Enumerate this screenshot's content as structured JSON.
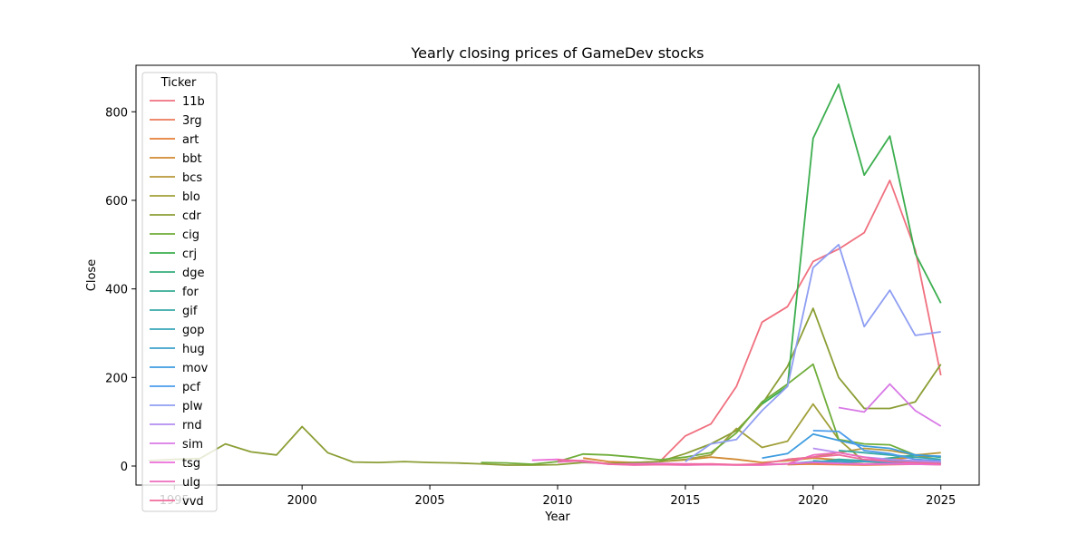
{
  "chart_data": {
    "type": "line",
    "title": "Yearly closing prices of GameDev stocks",
    "xlabel": "Year",
    "ylabel": "Close",
    "xlim": [
      1993.5,
      2026.5
    ],
    "ylim": [
      -43,
      905
    ],
    "x_ticks": [
      1995,
      2000,
      2005,
      2010,
      2015,
      2020,
      2025
    ],
    "x_tick_labels": [
      "1995",
      "2000",
      "2005",
      "2010",
      "2015",
      "2020",
      "2025"
    ],
    "y_ticks": [
      0,
      200,
      400,
      600,
      800
    ],
    "y_tick_labels": [
      "0",
      "200",
      "400",
      "600",
      "800"
    ],
    "grid": false,
    "legend": {
      "title": "Ticker",
      "location": "top-left"
    },
    "series": [
      {
        "name": "11b",
        "color": "#f0707f",
        "x": [
          2014,
          2015,
          2016,
          2017,
          2018,
          2019,
          2020,
          2021,
          2022,
          2023,
          2024,
          2025
        ],
        "values": [
          10,
          68,
          95,
          180,
          325,
          360,
          462,
          490,
          527,
          645,
          488,
          205
        ]
      },
      {
        "name": "3rg",
        "color": "#ec7a58",
        "x": [
          2018,
          2019,
          2020,
          2021,
          2022,
          2023,
          2024,
          2025
        ],
        "values": [
          3,
          5,
          4,
          3,
          2,
          3,
          4,
          5
        ]
      },
      {
        "name": "art",
        "color": "#e57e35",
        "x": [
          2019,
          2020,
          2021,
          2022,
          2023,
          2024,
          2025
        ],
        "values": [
          3,
          5,
          8,
          5,
          6,
          4,
          3
        ]
      },
      {
        "name": "bbt",
        "color": "#d28a32",
        "x": [
          2011,
          2012,
          2013,
          2014,
          2015,
          2016,
          2017,
          2018,
          2019,
          2020,
          2021,
          2022,
          2023,
          2024,
          2025
        ],
        "values": [
          18,
          10,
          8,
          10,
          14,
          20,
          15,
          8,
          12,
          18,
          14,
          10,
          15,
          20,
          22
        ]
      },
      {
        "name": "bcs",
        "color": "#b8983a",
        "x": [
          2019,
          2020,
          2021,
          2022,
          2023,
          2024,
          2025
        ],
        "values": [
          15,
          20,
          30,
          40,
          35,
          25,
          30
        ]
      },
      {
        "name": "blo",
        "color": "#a1a03a",
        "x": [
          2014,
          2015,
          2016,
          2017,
          2018,
          2019,
          2020,
          2021,
          2022,
          2023,
          2024,
          2025
        ],
        "values": [
          10,
          15,
          25,
          85,
          42,
          56,
          140,
          60,
          10,
          15,
          8,
          10
        ]
      },
      {
        "name": "cdr",
        "color": "#8b9e35",
        "x": [
          1994,
          1995,
          1996,
          1997,
          1998,
          1999,
          2000,
          2001,
          2002,
          2003,
          2004,
          2005,
          2006,
          2007,
          2008,
          2009,
          2010,
          2011,
          2012,
          2013,
          2014,
          2015,
          2016,
          2017,
          2018,
          2019,
          2020,
          2021,
          2022,
          2023,
          2024,
          2025
        ],
        "values": [
          12,
          15,
          17,
          50,
          32,
          25,
          89,
          30,
          9,
          8,
          10,
          8,
          7,
          5,
          2,
          2,
          3,
          8,
          6,
          8,
          10,
          28,
          50,
          80,
          140,
          225,
          356,
          200,
          130,
          130,
          145,
          230
        ]
      },
      {
        "name": "cig",
        "color": "#6fad3a",
        "x": [
          2007,
          2008,
          2009,
          2010,
          2011,
          2012,
          2013,
          2014,
          2015,
          2016,
          2017,
          2018,
          2019,
          2020,
          2021,
          2022,
          2023,
          2024,
          2025
        ],
        "values": [
          8,
          7,
          4,
          10,
          27,
          25,
          20,
          14,
          20,
          30,
          75,
          145,
          185,
          230,
          60,
          50,
          48,
          25,
          20
        ]
      },
      {
        "name": "crj",
        "color": "#3cae4f",
        "x": [
          2018,
          2019,
          2020,
          2021,
          2022,
          2023,
          2024,
          2025
        ],
        "values": [
          140,
          180,
          740,
          862,
          657,
          745,
          480,
          368
        ]
      },
      {
        "name": "dge",
        "color": "#37ad7b",
        "x": [
          2019,
          2020,
          2021,
          2022,
          2023,
          2024,
          2025
        ],
        "values": [
          5,
          8,
          12,
          10,
          12,
          10,
          8
        ]
      },
      {
        "name": "for",
        "color": "#36ab95",
        "x": [
          2018,
          2019,
          2020,
          2021,
          2022,
          2023,
          2024,
          2025
        ],
        "values": [
          3,
          5,
          8,
          15,
          12,
          18,
          25,
          20
        ]
      },
      {
        "name": "gif",
        "color": "#38a9a8",
        "x": [
          2021,
          2022,
          2023,
          2024,
          2025
        ],
        "values": [
          35,
          30,
          25,
          20,
          15
        ]
      },
      {
        "name": "gop",
        "color": "#3aa7ba",
        "x": [
          2020,
          2021,
          2022,
          2023,
          2024,
          2025
        ],
        "values": [
          12,
          8,
          10,
          12,
          10,
          8
        ]
      },
      {
        "name": "hug",
        "color": "#3da2cc",
        "x": [
          2019,
          2020,
          2021,
          2022,
          2023,
          2024,
          2025
        ],
        "values": [
          5,
          10,
          12,
          10,
          8,
          6,
          5
        ]
      },
      {
        "name": "mov",
        "color": "#3e9ce0",
        "x": [
          2018,
          2019,
          2020,
          2021,
          2022,
          2023,
          2024,
          2025
        ],
        "values": [
          18,
          28,
          72,
          58,
          45,
          40,
          25,
          22
        ]
      },
      {
        "name": "pcf",
        "color": "#4c9cec",
        "x": [
          2020,
          2021,
          2022,
          2023,
          2024,
          2025
        ],
        "values": [
          80,
          78,
          35,
          28,
          15,
          12
        ]
      },
      {
        "name": "plw",
        "color": "#8f9ef2",
        "x": [
          2015,
          2016,
          2017,
          2018,
          2019,
          2020,
          2021,
          2022,
          2023,
          2024,
          2025
        ],
        "values": [
          10,
          50,
          60,
          125,
          180,
          448,
          500,
          315,
          397,
          295,
          303
        ]
      },
      {
        "name": "rnd",
        "color": "#b58df0",
        "x": [
          2020,
          2021,
          2022,
          2023,
          2024,
          2025
        ],
        "values": [
          40,
          30,
          20,
          15,
          12,
          10
        ]
      },
      {
        "name": "sim",
        "color": "#d87ae6",
        "x": [
          2021,
          2022,
          2023,
          2024,
          2025
        ],
        "values": [
          132,
          122,
          185,
          125,
          90
        ]
      },
      {
        "name": "tsg",
        "color": "#ec6dd9",
        "x": [
          2009,
          2010,
          2011,
          2012,
          2013,
          2014,
          2015,
          2016,
          2017,
          2018,
          2019,
          2020,
          2021,
          2022,
          2023,
          2024,
          2025
        ],
        "values": [
          13,
          15,
          10,
          4,
          5,
          6,
          5,
          4,
          3,
          3,
          5,
          8,
          6,
          4,
          5,
          4,
          3
        ]
      },
      {
        "name": "ulg",
        "color": "#ee6cbd",
        "x": [
          2010,
          2011,
          2012,
          2013,
          2014,
          2015,
          2016,
          2017,
          2018,
          2019,
          2020,
          2021,
          2022,
          2023,
          2024,
          2025
        ],
        "values": [
          9,
          12,
          4,
          2,
          3,
          2,
          3,
          2,
          2,
          5,
          25,
          30,
          20,
          10,
          8,
          6
        ]
      },
      {
        "name": "vvd",
        "color": "#f06b9c",
        "x": [
          2010,
          2011,
          2012,
          2013,
          2014,
          2015,
          2016,
          2017,
          2018,
          2019,
          2020,
          2021,
          2022,
          2023,
          2024,
          2025
        ],
        "values": [
          14,
          12,
          5,
          3,
          3,
          4,
          5,
          3,
          5,
          15,
          20,
          25,
          15,
          10,
          7,
          5
        ]
      }
    ]
  }
}
